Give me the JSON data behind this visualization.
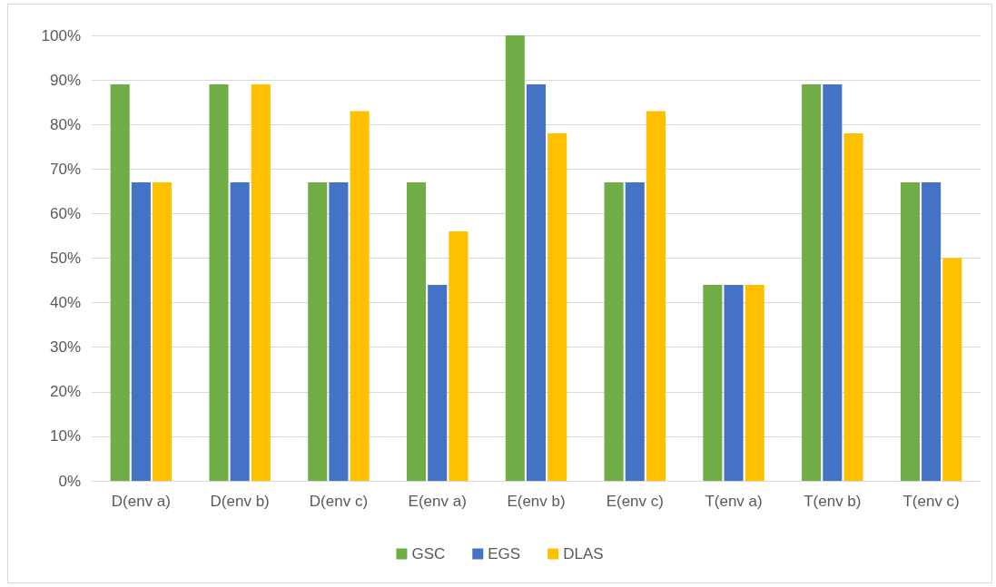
{
  "chart_data": {
    "type": "bar",
    "categories": [
      "D(env a)",
      "D(env b)",
      "D(env c)",
      "E(env a)",
      "E(env b)",
      "E(env c)",
      "T(env a)",
      "T(env b)",
      "T(env c)"
    ],
    "series": [
      {
        "name": "GSC",
        "color": "#70ad47",
        "values": [
          89,
          89,
          67,
          67,
          100,
          67,
          44,
          89,
          67
        ]
      },
      {
        "name": "EGS",
        "color": "#4472c4",
        "values": [
          67,
          67,
          67,
          44,
          89,
          67,
          44,
          89,
          67
        ]
      },
      {
        "name": "DLAS",
        "color": "#ffc000",
        "values": [
          67,
          89,
          83,
          56,
          78,
          83,
          44,
          78,
          50
        ]
      }
    ],
    "ylim": [
      0,
      100
    ],
    "yticks": [
      {
        "value": 0,
        "label": "0%"
      },
      {
        "value": 10,
        "label": "10%"
      },
      {
        "value": 20,
        "label": "20%"
      },
      {
        "value": 30,
        "label": "30%"
      },
      {
        "value": 40,
        "label": "40%"
      },
      {
        "value": 50,
        "label": "50%"
      },
      {
        "value": 60,
        "label": "60%"
      },
      {
        "value": 70,
        "label": "70%"
      },
      {
        "value": 80,
        "label": "80%"
      },
      {
        "value": 90,
        "label": "90%"
      },
      {
        "value": 100,
        "label": "100%"
      }
    ],
    "grid": "y",
    "legend": "bottom"
  }
}
